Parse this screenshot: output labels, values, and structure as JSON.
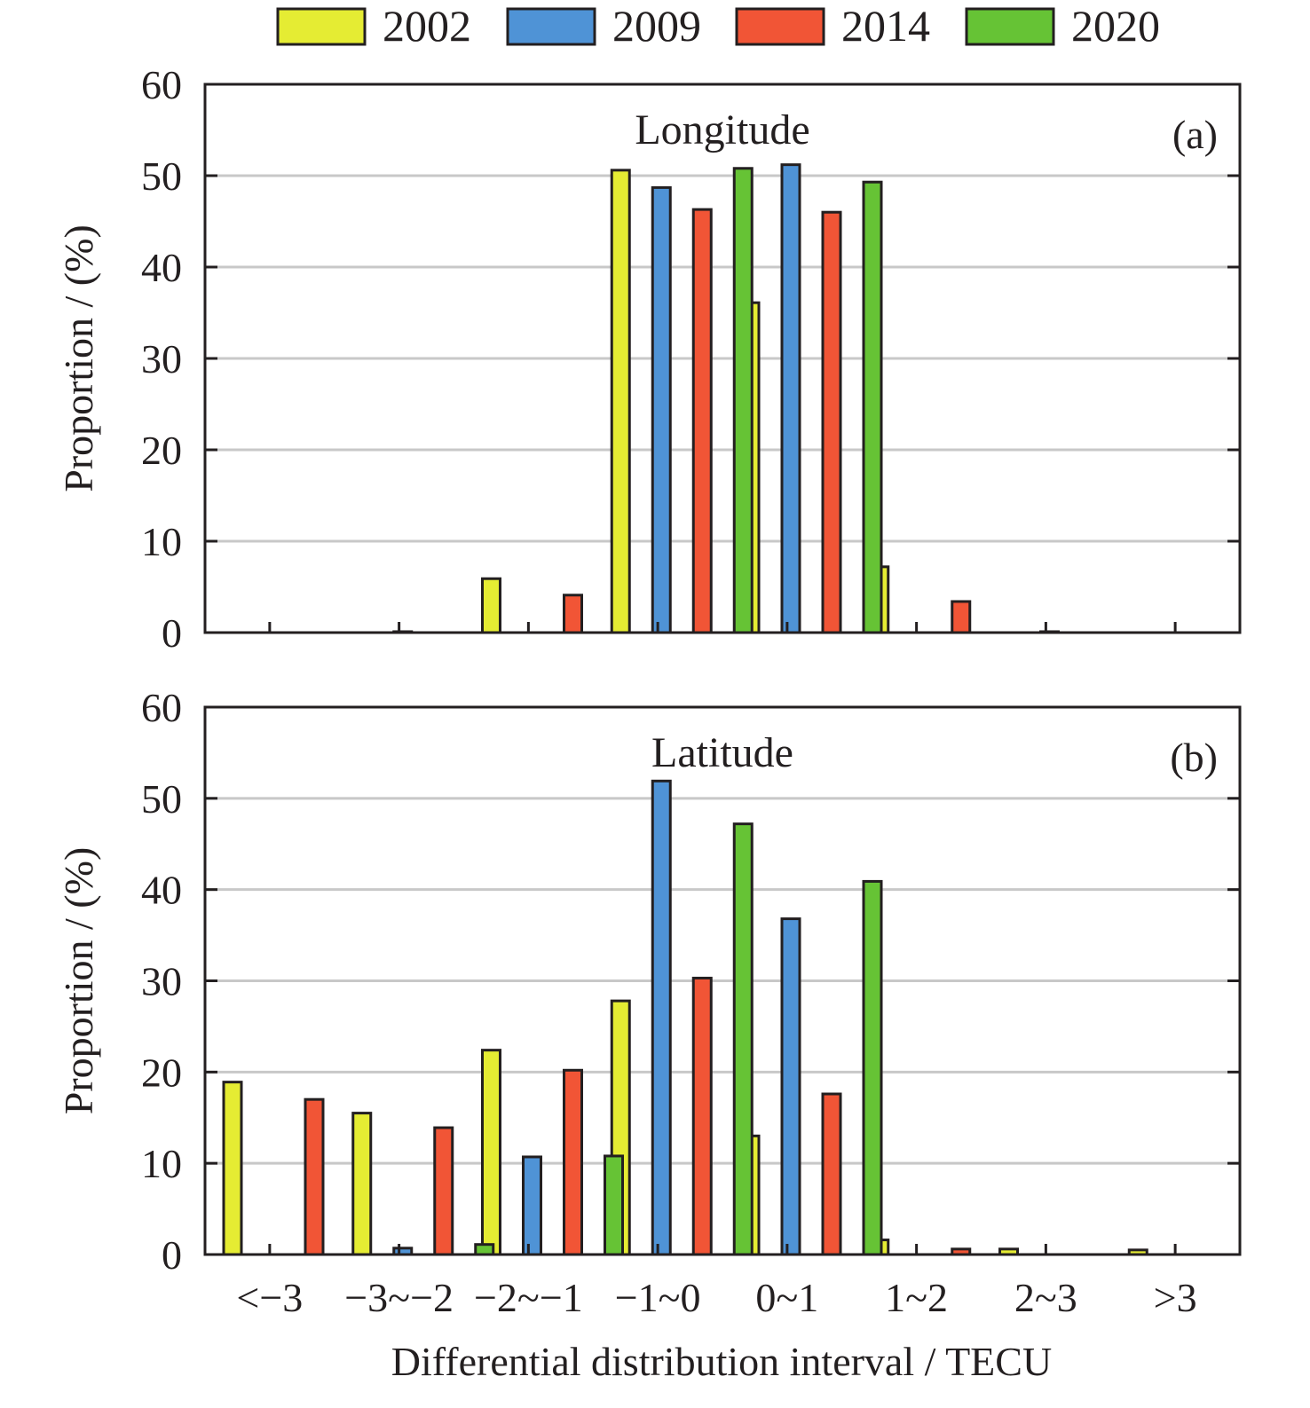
{
  "legend": {
    "items": [
      {
        "label": "2002",
        "color": "#e5ec33"
      },
      {
        "label": "2009",
        "color": "#4f93d6"
      },
      {
        "label": "2014",
        "color": "#f15536"
      },
      {
        "label": "2020",
        "color": "#66c335"
      }
    ]
  },
  "xlabel": "Differential distribution interval / TECU",
  "categories": [
    "<−3",
    "−3~−2",
    "−2~−1",
    "−1~0",
    "0~1",
    "1~2",
    "2~3",
    ">3"
  ],
  "chart_data": [
    {
      "type": "bar",
      "title": "Longitude",
      "panel_label": "(a)",
      "xlabel": "Differential distribution interval / TECU",
      "ylabel": "Proportion / (%)",
      "ylim": [
        0,
        60
      ],
      "yticks": [
        0,
        10,
        20,
        30,
        40,
        50,
        60
      ],
      "grid": true,
      "legend_position": "top-center",
      "categories": [
        "<−3",
        "−3~−2",
        "−2~−1",
        "−1~0",
        "0~1",
        "1~2",
        "2~3",
        ">3"
      ],
      "series": [
        {
          "name": "2002",
          "values": [
            0,
            0,
            5.9,
            50.6,
            36.1,
            7.2,
            0,
            0
          ]
        },
        {
          "name": "2009",
          "values": [
            0,
            0.1,
            0,
            48.7,
            51.2,
            0,
            0.1,
            0
          ]
        },
        {
          "name": "2014",
          "values": [
            0,
            0,
            4.1,
            46.3,
            46.0,
            3.4,
            0,
            0
          ]
        },
        {
          "name": "2020",
          "values": [
            0,
            0,
            0,
            50.8,
            49.3,
            0,
            0,
            0
          ]
        }
      ]
    },
    {
      "type": "bar",
      "title": "Latitude",
      "panel_label": "(b)",
      "xlabel": "Differential distribution interval / TECU",
      "ylabel": "Proportion / (%)",
      "ylim": [
        0,
        60
      ],
      "yticks": [
        0,
        10,
        20,
        30,
        40,
        50,
        60
      ],
      "grid": true,
      "legend_position": "top-center",
      "categories": [
        "<−3",
        "−3~−2",
        "−2~−1",
        "−1~0",
        "0~1",
        "1~2",
        "2~3",
        ">3"
      ],
      "series": [
        {
          "name": "2002",
          "values": [
            18.9,
            15.5,
            22.4,
            27.8,
            13.0,
            1.6,
            0.6,
            0.5
          ]
        },
        {
          "name": "2009",
          "values": [
            0,
            0.7,
            10.7,
            51.9,
            36.8,
            0,
            0,
            0
          ]
        },
        {
          "name": "2014",
          "values": [
            17.0,
            13.9,
            20.2,
            30.3,
            17.6,
            0.6,
            0,
            0
          ]
        },
        {
          "name": "2020",
          "values": [
            0,
            1.1,
            10.8,
            47.2,
            40.9,
            0,
            0,
            0
          ]
        }
      ]
    }
  ]
}
